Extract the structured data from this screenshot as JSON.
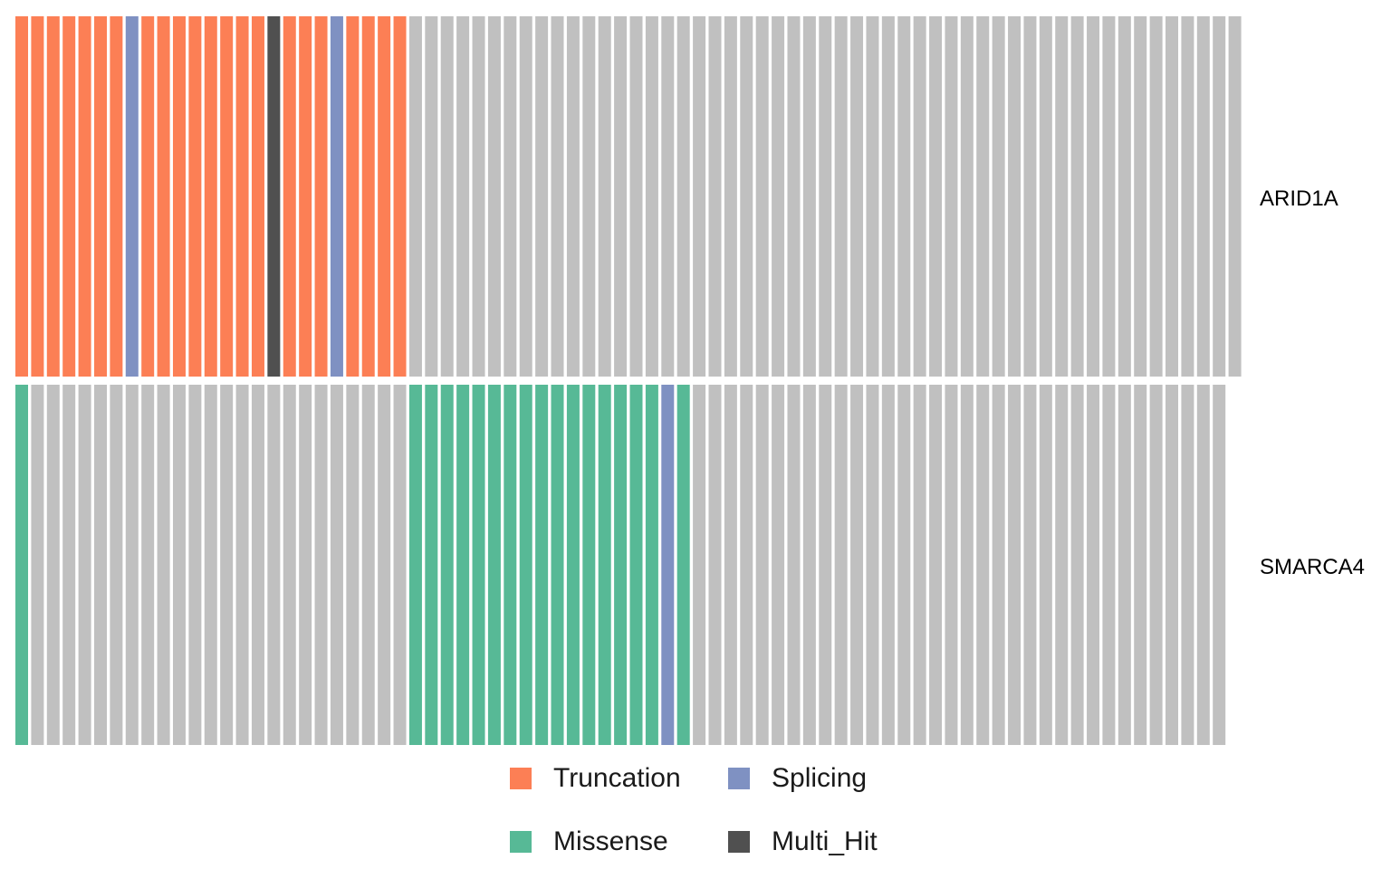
{
  "chart_data": {
    "type": "heatmap",
    "title": "",
    "genes": [
      "ARID1A",
      "SMARCA4"
    ],
    "sample_count": 78,
    "rows": [
      {
        "gene": "ARID1A",
        "values": [
          "Truncation",
          "Truncation",
          "Truncation",
          "Truncation",
          "Truncation",
          "Truncation",
          "Truncation",
          "Splicing",
          "Truncation",
          "Truncation",
          "Truncation",
          "Truncation",
          "Truncation",
          "Truncation",
          "Truncation",
          "Truncation",
          "Multi_Hit",
          "Truncation",
          "Truncation",
          "Truncation",
          "Splicing",
          "Truncation",
          "Truncation",
          "Truncation",
          "Truncation",
          "None",
          "None",
          "None",
          "None",
          "None",
          "None",
          "None",
          "None",
          "None",
          "None",
          "None",
          "None",
          "None",
          "None",
          "None",
          "None",
          "None",
          "None",
          "None",
          "None",
          "None",
          "None",
          "None",
          "None",
          "None",
          "None",
          "None",
          "None",
          "None",
          "None",
          "None",
          "None",
          "None",
          "None",
          "None",
          "None",
          "None",
          "None",
          "None",
          "None",
          "None",
          "None",
          "None",
          "None",
          "None",
          "None",
          "None",
          "None",
          "None",
          "None",
          "None",
          "None",
          "None"
        ]
      },
      {
        "gene": "SMARCA4",
        "values": [
          "Missense",
          "None",
          "None",
          "None",
          "None",
          "None",
          "None",
          "None",
          "None",
          "None",
          "None",
          "None",
          "None",
          "None",
          "None",
          "None",
          "None",
          "None",
          "None",
          "None",
          "None",
          "None",
          "None",
          "None",
          "None",
          "Missense",
          "Missense",
          "Missense",
          "Missense",
          "Missense",
          "Missense",
          "Missense",
          "Missense",
          "Missense",
          "Missense",
          "Missense",
          "Missense",
          "Missense",
          "Missense",
          "Missense",
          "Missense",
          "Splicing",
          "Missense",
          "None",
          "None",
          "None",
          "None",
          "None",
          "None",
          "None",
          "None",
          "None",
          "None",
          "None",
          "None",
          "None",
          "None",
          "None",
          "None",
          "None",
          "None",
          "None",
          "None",
          "None",
          "None",
          "None",
          "None",
          "None",
          "None",
          "None",
          "None",
          "None",
          "None",
          "None",
          "None",
          "None",
          "None"
        ]
      }
    ],
    "colors": {
      "Truncation": "#FC7F55",
      "Splicing": "#7F91C2",
      "Multi_Hit": "#505050",
      "Missense": "#57B996",
      "None": "#C0C0C0"
    },
    "legend": {
      "position": "bottom",
      "items": [
        "Truncation",
        "Splicing",
        "Missense",
        "Multi_Hit"
      ]
    }
  }
}
